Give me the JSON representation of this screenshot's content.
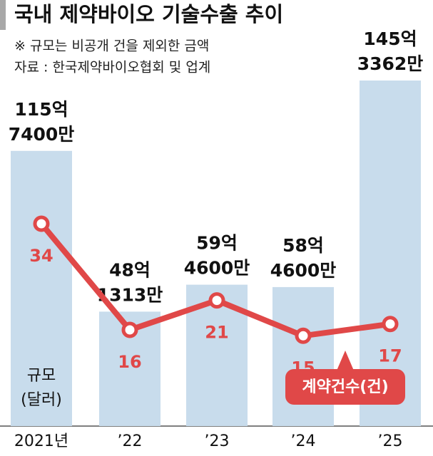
{
  "chart_data": {
    "type": "bar-line",
    "title": "국내 제약바이오 기술수출 추이",
    "subtitle": "※ 규모는 비공개 건을 제외한 금액",
    "source": "자료 : 한국제약바이오협회 및 업계",
    "bar_label": [
      "규모",
      "(달러)"
    ],
    "categories": [
      "2021년",
      "’22",
      "’23",
      "’24",
      "’25"
    ],
    "series": [
      {
        "name": "규모",
        "color": "#c8dcec",
        "values": [
          11574000000,
          4813130000,
          5946000000,
          5846000000,
          14533620000
        ],
        "value_labels": [
          [
            "115억",
            "7400만"
          ],
          [
            "48억",
            "1313만"
          ],
          [
            "59억",
            "4600만"
          ],
          [
            "58억",
            "4600만"
          ],
          [
            "145억",
            "3362만"
          ]
        ]
      },
      {
        "name": "계약건수(건)",
        "color": "#e04848",
        "values": [
          34,
          16,
          21,
          15,
          17
        ]
      }
    ]
  }
}
